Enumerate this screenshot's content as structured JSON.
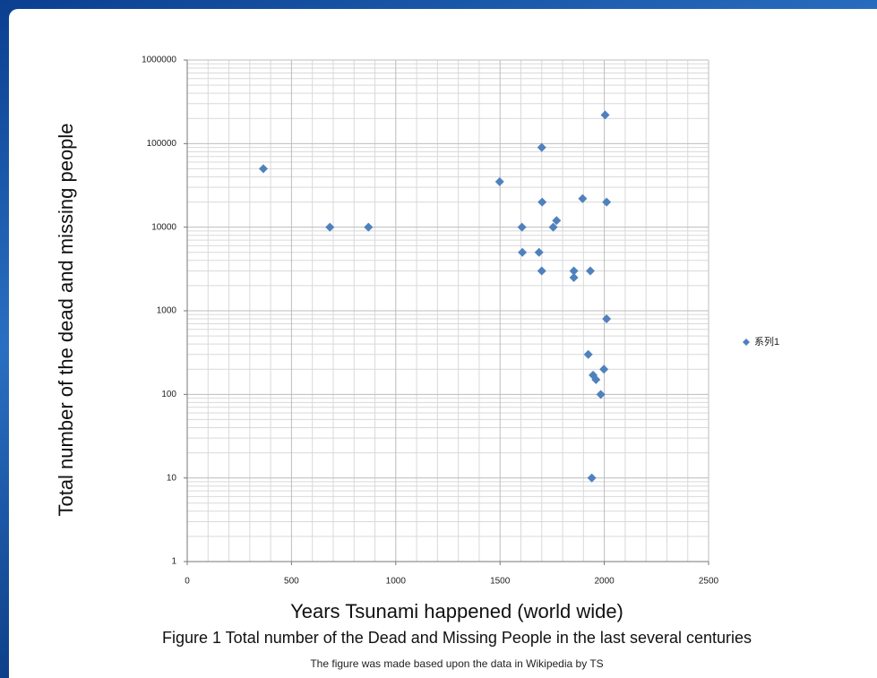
{
  "chart_data": {
    "type": "scatter",
    "y_label": "Total number of the dead and missing people",
    "x_label": "Years Tsunami happened (world wide)",
    "series": [
      {
        "name": "系列1",
        "color": "#4f81bd",
        "x": [
          365,
          684,
          869,
          1498,
          1700,
          1702,
          1605,
          1607,
          1687,
          1700,
          1755,
          1771,
          1854,
          1854,
          1896,
          1933,
          2004,
          2011,
          2011,
          1923,
          1946,
          1960,
          1998,
          1983,
          1940
        ],
        "values": [
          50000,
          10000,
          10000,
          35000,
          90000,
          20000,
          10000,
          5000,
          5000,
          3000,
          10000,
          12000,
          3000,
          2500,
          22000,
          3000,
          220000,
          20000,
          800,
          300,
          170,
          150,
          200,
          100,
          10
        ]
      }
    ],
    "xlim": [
      0,
      2500
    ],
    "xticks": [
      0,
      500,
      1000,
      1500,
      2000,
      2500
    ],
    "ylim": [
      1,
      1000000
    ],
    "yticks": [
      1,
      10,
      100,
      1000,
      10000,
      100000,
      1000000
    ],
    "yscale": "log",
    "grid": true,
    "legend": "right"
  },
  "caption": "Figure 1 Total number of the Dead and Missing People in the last several centuries",
  "note": "The figure was made based upon the data in Wikipedia by TS"
}
